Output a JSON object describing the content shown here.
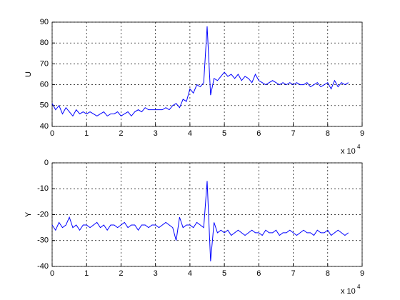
{
  "chart_data": [
    {
      "type": "line",
      "ylabel": "U",
      "color": "#0000ff",
      "grid": true,
      "x": [
        0,
        1000,
        2000,
        3000,
        4000,
        5000,
        6000,
        7000,
        8000,
        9000,
        10000,
        11000,
        12000,
        13000,
        14000,
        15000,
        16000,
        17000,
        18000,
        19000,
        20000,
        21000,
        22000,
        23000,
        24000,
        25000,
        26000,
        27000,
        28000,
        29000,
        30000,
        31000,
        32000,
        33000,
        34000,
        35000,
        36000,
        37000,
        38000,
        39000,
        40000,
        41000,
        42000,
        43000,
        44000,
        45000,
        46000,
        47000,
        48000,
        49000,
        50000,
        51000,
        52000,
        53000,
        54000,
        55000,
        56000,
        57000,
        58000,
        59000,
        60000,
        61000,
        62000,
        63000,
        64000,
        65000,
        66000,
        67000,
        68000,
        69000,
        70000,
        71000,
        72000,
        73000,
        74000,
        75000,
        76000,
        77000,
        78000,
        79000,
        80000,
        81000,
        82000,
        83000,
        84000,
        85000,
        86000
      ],
      "values": [
        51,
        48,
        50,
        46,
        49,
        47,
        45,
        48,
        46,
        47,
        46,
        47,
        46,
        45,
        46,
        47,
        45,
        46,
        46,
        47,
        45,
        46,
        47,
        45,
        47,
        48,
        47,
        49,
        48,
        48,
        48,
        48,
        48,
        49,
        48,
        50,
        51,
        49,
        53,
        52,
        58,
        56,
        60,
        59,
        61,
        88,
        55,
        63,
        62,
        64,
        66,
        64,
        65,
        63,
        65,
        62,
        64,
        63,
        61,
        65,
        62,
        61,
        60,
        61,
        62,
        61,
        60,
        61,
        60,
        61,
        60,
        61,
        60,
        60,
        61,
        59,
        60,
        61,
        59,
        60,
        61,
        58,
        62,
        59,
        61,
        60,
        61
      ],
      "xlim": [
        0,
        90000
      ],
      "xticks": [
        0,
        {
          "value": 10000,
          "label": "1"
        },
        {
          "value": 20000,
          "label": "2"
        },
        {
          "value": 30000,
          "label": "3"
        },
        {
          "value": 40000,
          "label": "4"
        },
        {
          "value": 50000,
          "label": "5"
        },
        {
          "value": 60000,
          "label": "6"
        },
        {
          "value": 70000,
          "label": "7"
        },
        {
          "value": 80000,
          "label": "8"
        },
        {
          "value": 90000,
          "label": "9"
        }
      ],
      "x_multiplier": "x 10",
      "x_multiplier_power": "4",
      "ylim": [
        40,
        90
      ],
      "yticks": [
        40,
        50,
        60,
        70,
        80,
        90
      ]
    },
    {
      "type": "line",
      "ylabel": "Y",
      "color": "#0000ff",
      "grid": true,
      "x": [
        0,
        1000,
        2000,
        3000,
        4000,
        5000,
        6000,
        7000,
        8000,
        9000,
        10000,
        11000,
        12000,
        13000,
        14000,
        15000,
        16000,
        17000,
        18000,
        19000,
        20000,
        21000,
        22000,
        23000,
        24000,
        25000,
        26000,
        27000,
        28000,
        29000,
        30000,
        31000,
        32000,
        33000,
        34000,
        35000,
        36000,
        37000,
        38000,
        39000,
        40000,
        41000,
        42000,
        43000,
        44000,
        45000,
        46000,
        47000,
        48000,
        49000,
        50000,
        51000,
        52000,
        53000,
        54000,
        55000,
        56000,
        57000,
        58000,
        59000,
        60000,
        61000,
        62000,
        63000,
        64000,
        65000,
        66000,
        67000,
        68000,
        69000,
        70000,
        71000,
        72000,
        73000,
        74000,
        75000,
        76000,
        77000,
        78000,
        79000,
        80000,
        81000,
        82000,
        83000,
        84000,
        85000,
        86000
      ],
      "values": [
        -24,
        -26,
        -23,
        -25,
        -24,
        -21,
        -25,
        -24,
        -26,
        -24,
        -24,
        -25,
        -24,
        -23,
        -25,
        -24,
        -26,
        -24,
        -24,
        -25,
        -24,
        -23,
        -25,
        -24,
        -24,
        -26,
        -24,
        -24,
        -25,
        -24,
        -24,
        -25,
        -24,
        -23,
        -24,
        -25,
        -30,
        -21,
        -25,
        -24,
        -24,
        -25,
        -23,
        -24,
        -25,
        -7,
        -38,
        -23,
        -27,
        -26,
        -27,
        -26,
        -28,
        -27,
        -26,
        -27,
        -28,
        -27,
        -26,
        -27,
        -27,
        -28,
        -26,
        -27,
        -27,
        -26,
        -28,
        -27,
        -27,
        -26,
        -27,
        -28,
        -27,
        -26,
        -27,
        -27,
        -28,
        -26,
        -27,
        -27,
        -26,
        -28,
        -27,
        -26,
        -27,
        -28,
        -27
      ],
      "xlim": [
        0,
        90000
      ],
      "xticks": [
        0,
        {
          "value": 10000,
          "label": "1"
        },
        {
          "value": 20000,
          "label": "2"
        },
        {
          "value": 30000,
          "label": "3"
        },
        {
          "value": 40000,
          "label": "4"
        },
        {
          "value": 50000,
          "label": "5"
        },
        {
          "value": 60000,
          "label": "6"
        },
        {
          "value": 70000,
          "label": "7"
        },
        {
          "value": 80000,
          "label": "8"
        },
        {
          "value": 90000,
          "label": "9"
        }
      ],
      "x_multiplier": "x 10",
      "x_multiplier_power": "4",
      "ylim": [
        -40,
        0
      ],
      "yticks": [
        -40,
        -30,
        -20,
        -10,
        0
      ]
    }
  ]
}
